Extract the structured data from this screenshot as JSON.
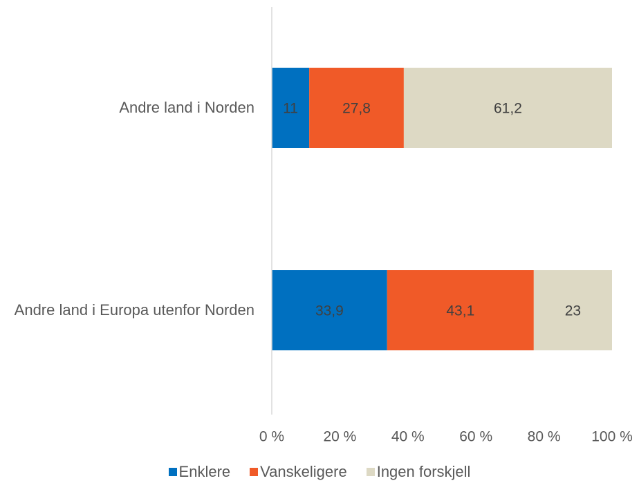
{
  "chart_data": {
    "type": "stacked_barh",
    "categories": [
      "Andre land i Norden",
      "Andre land i Europa utenfor Norden"
    ],
    "series": [
      {
        "name": "Enklere",
        "color": "#0070c0",
        "values": [
          11,
          33.9
        ],
        "value_labels": [
          "11",
          "33,9"
        ]
      },
      {
        "name": "Vanskeligere",
        "color": "#f05a28",
        "values": [
          27.8,
          43.1
        ],
        "value_labels": [
          "27,8",
          "43,1"
        ]
      },
      {
        "name": "Ingen forskjell",
        "color": "#ddd9c4",
        "values": [
          61.2,
          23
        ],
        "value_labels": [
          "61,2",
          "23"
        ]
      }
    ],
    "xlim": [
      0,
      100
    ],
    "xticks": [
      {
        "value": 0,
        "label": "0 %"
      },
      {
        "value": 20,
        "label": "20 %"
      },
      {
        "value": 40,
        "label": "40 %"
      },
      {
        "value": 60,
        "label": "60 %"
      },
      {
        "value": 80,
        "label": "80 %"
      },
      {
        "value": 100,
        "label": "100 %"
      }
    ],
    "legend": "bottom"
  }
}
